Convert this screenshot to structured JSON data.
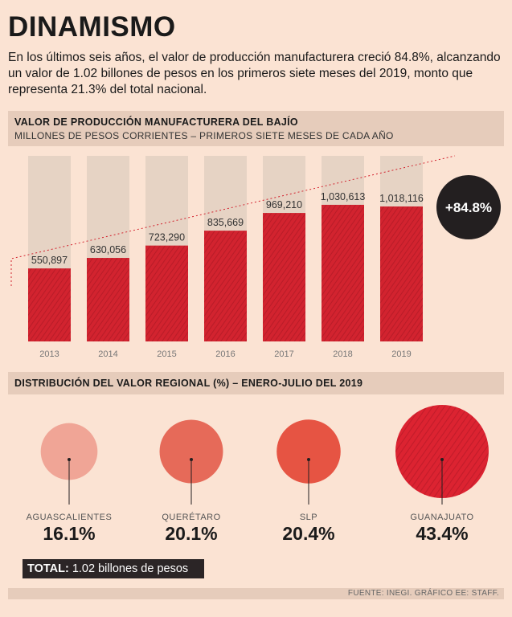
{
  "title": "DINAMISMO",
  "intro": "En los últimos seis años, el valor de producción manufacturera creció 84.8%, alcanzando un valor de 1.02 billones de pesos en los primeros  siete meses del 2019, monto que representa 21.3% del total nacional.",
  "section1": {
    "title": "VALOR DE PRODUCCIÓN MANUFACTURERA DEL BAJÍO",
    "subtitle": "MILLONES DE PESOS CORRIENTES – PRIMEROS SIETE MESES DE CADA AÑO"
  },
  "section2": {
    "title": "DISTRIBUCIÓN DEL VALOR REGIONAL (%) – ENERO-JULIO DEL 2019"
  },
  "growth_badge": "+84.8%",
  "total": {
    "label": "TOTAL:",
    "value": "1.02 billones de pesos"
  },
  "source": "FUENTE: INEGI. GRÁFICO EE: STAFF.",
  "colors": {
    "bar_red": "#d2232f",
    "bar_bg": "#e6d3c4",
    "badge": "#231f20"
  },
  "chart_data": [
    {
      "type": "bar",
      "categories": [
        "2013",
        "2014",
        "2015",
        "2016",
        "2017",
        "2018",
        "2019"
      ],
      "values": [
        550897,
        630056,
        723290,
        835669,
        969210,
        1030613,
        1018116
      ],
      "value_labels": [
        "550,897",
        "630,056",
        "723,290",
        "835,669",
        "969,210",
        "1,030,613",
        "1,018,116"
      ],
      "title": "VALOR DE PRODUCCIÓN MANUFACTURERA DEL BAJÍO",
      "ylabel": "MILLONES DE PESOS CORRIENTES – PRIMEROS SIETE MESES DE CADA AÑO",
      "ylim": [
        0,
        1400000
      ],
      "annotation": "+84.8%"
    },
    {
      "type": "bubble",
      "title": "DISTRIBUCIÓN DEL VALOR REGIONAL (%) – ENERO-JULIO DEL 2019",
      "categories": [
        "AGUASCALIENTES",
        "QUERÉTARO",
        "SLP",
        "GUANAJUATO"
      ],
      "values": [
        16.1,
        20.1,
        20.4,
        43.4
      ],
      "value_labels": [
        "16.1%",
        "20.1%",
        "20.4%",
        "43.4%"
      ],
      "colors": [
        "#f0a596",
        "#e66a59",
        "#e65443",
        "#dc2331"
      ]
    }
  ]
}
